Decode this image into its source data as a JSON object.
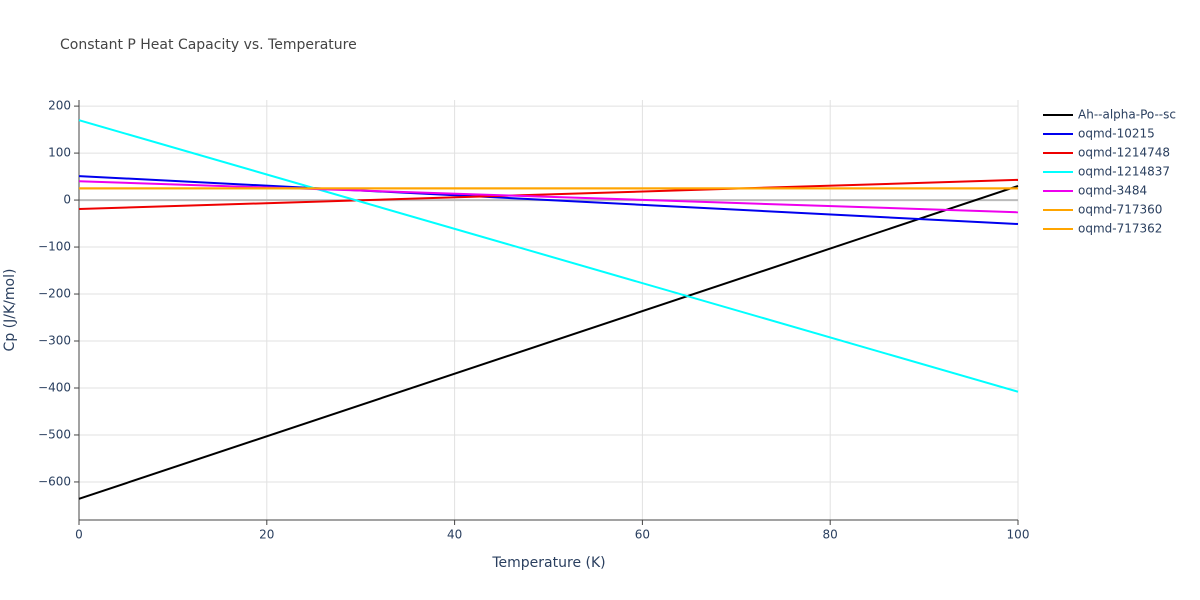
{
  "chart_data": {
    "type": "line",
    "title": "Constant P Heat Capacity vs. Temperature",
    "x_label": "Temperature (K)",
    "y_label": "Cp (J/K/mol)",
    "x": [
      0,
      100
    ],
    "series": [
      {
        "name": "Ah--alpha-Po--sc",
        "color": "#000000",
        "values": [
          -636,
          30
        ]
      },
      {
        "name": "oqmd-10215",
        "color": "#0000ee",
        "values": [
          51,
          -51
        ]
      },
      {
        "name": "oqmd-1214748",
        "color": "#ee0000",
        "values": [
          -19,
          43
        ]
      },
      {
        "name": "oqmd-1214837",
        "color": "#00ffff",
        "values": [
          170,
          -408
        ]
      },
      {
        "name": "oqmd-3484",
        "color": "#ee00ee",
        "values": [
          40,
          -26
        ]
      },
      {
        "name": "oqmd-717360",
        "color": "#ffa500",
        "values": [
          25,
          25
        ]
      },
      {
        "name": "oqmd-717362",
        "color": "#ffa500",
        "values": [
          25,
          25
        ]
      }
    ],
    "xlim": [
      0,
      100
    ],
    "xticks": [
      0,
      20,
      40,
      60,
      80,
      100
    ],
    "ylim": [
      -681,
      213
    ],
    "yticks": [
      {
        "value": -600,
        "label": "−600"
      },
      {
        "value": -500,
        "label": "−500"
      },
      {
        "value": -400,
        "label": "−400"
      },
      {
        "value": -300,
        "label": "−300"
      },
      {
        "value": -200,
        "label": "−200"
      },
      {
        "value": -100,
        "label": "−100"
      },
      0,
      100,
      200
    ],
    "grid": true
  }
}
